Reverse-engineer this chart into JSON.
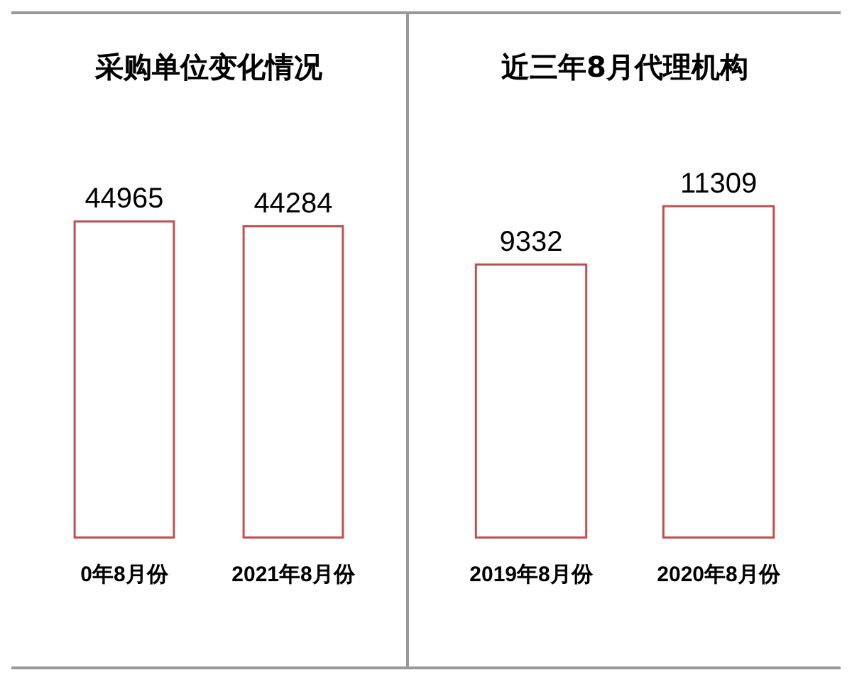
{
  "chart_data": [
    {
      "type": "bar",
      "title": "采购单位变化情况",
      "categories": [
        "0年8月份",
        "2021年8月份"
      ],
      "values": [
        44965,
        44284
      ],
      "color": "#c0504d",
      "data_labels": true
    },
    {
      "type": "bar",
      "title": "近三年8月代理机构",
      "categories": [
        "2019年8月份",
        "2020年8月份"
      ],
      "values": [
        9332,
        11309
      ],
      "color": "#c0504d",
      "data_labels": true
    }
  ]
}
